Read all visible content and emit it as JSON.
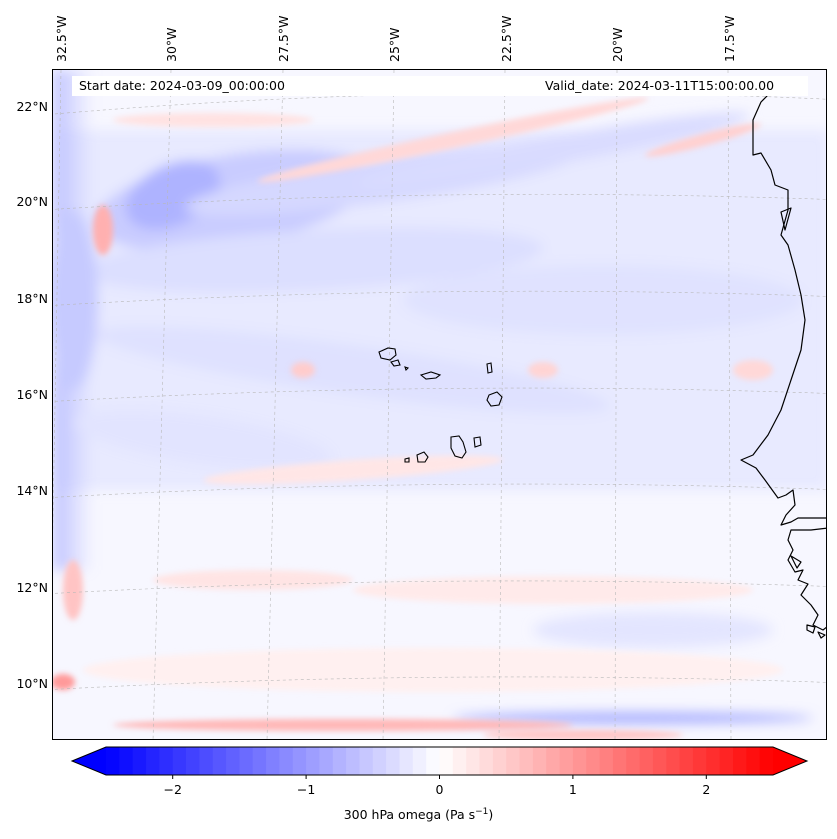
{
  "map": {
    "start_date": "Start date: 2024-03-09_00:00:00",
    "valid_date": "Valid_date: 2024-03-11T15:00:00.00",
    "longitude_labels": [
      "32.5°W",
      "30°W",
      "27.5°W",
      "25°W",
      "22.5°W",
      "20°W",
      "17.5°W"
    ],
    "latitude_labels": [
      "22°N",
      "20°N",
      "18°N",
      "16°N",
      "14°N",
      "12°N",
      "10°N"
    ],
    "variable": "300 hPa omega",
    "units": "Pa s⁻¹",
    "colors": {
      "negative": "#0000ff",
      "zero": "#ffffff",
      "positive": "#ff0000",
      "coast": "#000000",
      "grid": "#b0b0b0"
    }
  },
  "colorbar": {
    "tick_values": [
      -2,
      -1,
      0,
      1,
      2
    ],
    "tick_labels": [
      "−2",
      "−1",
      "0",
      "1",
      "2"
    ],
    "range": [
      -2.5,
      2.5
    ],
    "title": "300 hPa omega (Pa s",
    "title_sup": "−1",
    "title_end": ")"
  }
}
